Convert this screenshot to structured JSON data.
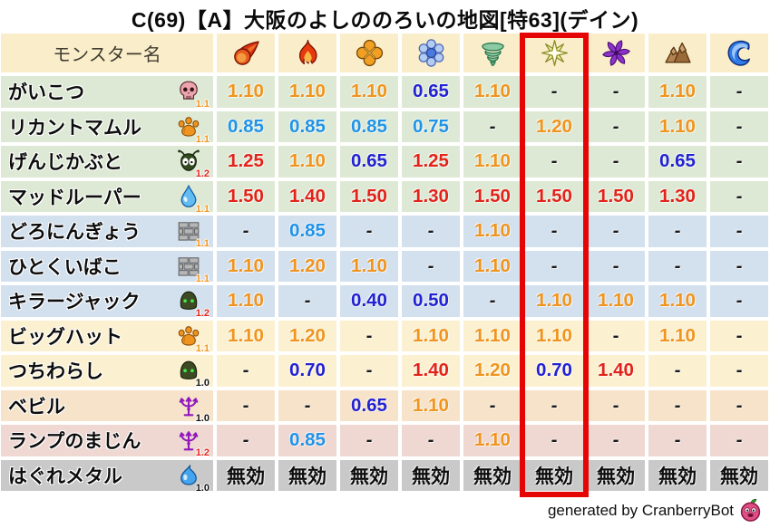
{
  "title": "C(69)【A】大阪のよしののろいの地図[特63](デイン)",
  "header": {
    "monster_col_label": "モンスター名"
  },
  "chart_data": {
    "type": "table",
    "title": "C(69)【A】大阪のよしののろいの地図[特63](デイン)",
    "columns": [
      "モンスター名",
      "fireball",
      "flame",
      "explosion",
      "snowflake",
      "tornado",
      "spark",
      "pinwheel",
      "mountain",
      "wave"
    ],
    "highlighted_column": "spark",
    "highlighted_column_index": 6,
    "immune_label": "無効",
    "no_data_label": "-",
    "rows": [
      {
        "name": "がいこつ",
        "icon": "skull",
        "modifier": "1.1",
        "group": "green",
        "values": [
          "1.10",
          "1.10",
          "1.10",
          "0.65",
          "1.10",
          "-",
          "-",
          "1.10",
          "-"
        ]
      },
      {
        "name": "リカントマムル",
        "icon": "paw",
        "modifier": "1.1",
        "group": "green",
        "values": [
          "0.85",
          "0.85",
          "0.85",
          "0.75",
          "-",
          "1.20",
          "-",
          "1.10",
          "-"
        ]
      },
      {
        "name": "げんじかぶと",
        "icon": "beetle",
        "modifier": "1.2",
        "group": "green",
        "values": [
          "1.25",
          "1.10",
          "0.65",
          "1.25",
          "1.10",
          "-",
          "-",
          "0.65",
          "-"
        ]
      },
      {
        "name": "マッドルーパー",
        "icon": "waterdrop",
        "modifier": "1.1",
        "group": "green",
        "values": [
          "1.50",
          "1.40",
          "1.50",
          "1.30",
          "1.50",
          "1.50",
          "1.50",
          "1.30",
          "-"
        ]
      },
      {
        "name": "どろにんぎょう",
        "icon": "brick",
        "modifier": "1.1",
        "group": "blue",
        "values": [
          "-",
          "0.85",
          "-",
          "-",
          "1.10",
          "-",
          "-",
          "-",
          "-"
        ]
      },
      {
        "name": "ひとくいばこ",
        "icon": "brick",
        "modifier": "1.1",
        "group": "blue",
        "values": [
          "1.10",
          "1.20",
          "1.10",
          "-",
          "1.10",
          "-",
          "-",
          "-",
          "-"
        ]
      },
      {
        "name": "キラージャック",
        "icon": "helmet",
        "modifier": "1.2",
        "group": "blue",
        "values": [
          "1.10",
          "-",
          "0.40",
          "0.50",
          "-",
          "1.10",
          "1.10",
          "1.10",
          "-"
        ]
      },
      {
        "name": "ビッグハット",
        "icon": "paw",
        "modifier": "1.1",
        "group": "cream",
        "values": [
          "1.10",
          "1.20",
          "-",
          "1.10",
          "1.10",
          "1.10",
          "-",
          "1.10",
          "-"
        ]
      },
      {
        "name": "つちわらし",
        "icon": "helmet",
        "modifier": "1.0",
        "group": "cream",
        "values": [
          "-",
          "0.70",
          "-",
          "1.40",
          "1.20",
          "0.70",
          "1.40",
          "-",
          "-"
        ]
      },
      {
        "name": "ベビル",
        "icon": "trident",
        "modifier": "1.0",
        "group": "tan",
        "values": [
          "-",
          "-",
          "0.65",
          "1.10",
          "-",
          "-",
          "-",
          "-",
          "-"
        ]
      },
      {
        "name": "ランプのまじん",
        "icon": "trident",
        "modifier": "1.2",
        "group": "pink",
        "values": [
          "-",
          "0.85",
          "-",
          "-",
          "1.10",
          "-",
          "-",
          "-",
          "-"
        ]
      },
      {
        "name": "はぐれメタル",
        "icon": "slime",
        "modifier": "1.0",
        "group": "gray",
        "values": [
          "無効",
          "無効",
          "無効",
          "無効",
          "無効",
          "無効",
          "無効",
          "無効",
          "無効"
        ]
      }
    ]
  },
  "footer": {
    "credit": "generated by CranberryBot",
    "icon": "cranberry-bot"
  },
  "colors": {
    "highlight_box": "#e60505",
    "value_strong_up": "#e2231a",
    "value_up": "#f0941d",
    "value_down": "#2093e8",
    "value_strong_down": "#2222d2",
    "modifier_up": "#f0941d",
    "modifier_strong_up": "#e2231a",
    "row_green": "#dde9d4",
    "row_blue": "#d3e0ee",
    "row_cream": "#fbf0d0",
    "row_tan": "#f6e3c9",
    "row_pink": "#efd7d2",
    "row_gray": "#c9c9c9",
    "header_bg": "#faeeca"
  }
}
